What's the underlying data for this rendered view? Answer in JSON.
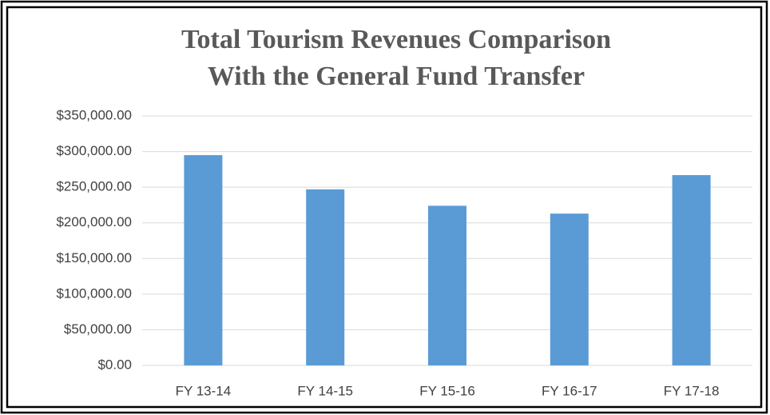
{
  "chart_data": {
    "type": "bar",
    "title": [
      "Total Tourism Revenues Comparison",
      "With the General Fund Transfer"
    ],
    "categories": [
      "FY 13-14",
      "FY 14-15",
      "FY 15-16",
      "FY 16-17",
      "FY 17-18"
    ],
    "values": [
      295000,
      247000,
      224000,
      213000,
      267000
    ],
    "color": "#5b9bd5",
    "ylim": [
      0,
      350000
    ],
    "yticks": [
      {
        "value": 0,
        "label": "$0.00"
      },
      {
        "value": 50000,
        "label": "$50,000.00"
      },
      {
        "value": 100000,
        "label": "$100,000.00"
      },
      {
        "value": 150000,
        "label": "$150,000.00"
      },
      {
        "value": 200000,
        "label": "$200,000.00"
      },
      {
        "value": 250000,
        "label": "$250,000.00"
      },
      {
        "value": 300000,
        "label": "$300,000.00"
      },
      {
        "value": 350000,
        "label": "$350,000.00"
      }
    ],
    "grid": true
  }
}
